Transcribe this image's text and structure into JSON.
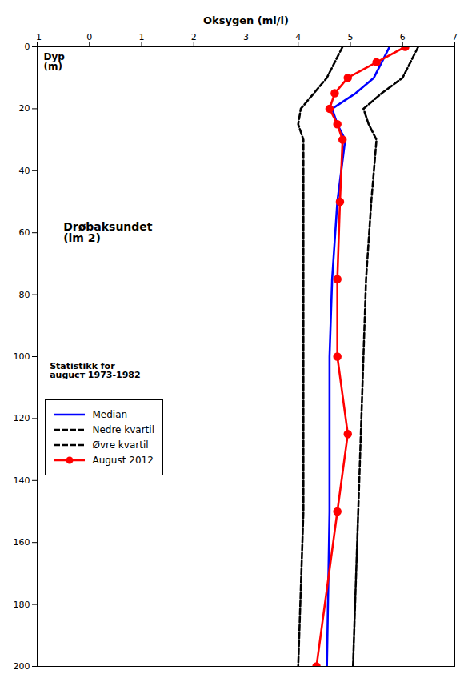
{
  "chart_data": {
    "type": "line",
    "xlabel": "Oksygen (ml/l)",
    "ylabel": "Dyp\n(m)",
    "annotations": [
      "Drøbaksundet\n(lm 2)",
      "Statistikk for\nauguст 1973-1982"
    ],
    "xlim": [
      -1,
      7
    ],
    "ylim": [
      0,
      200
    ],
    "xticks": [
      -1,
      0,
      1,
      2,
      3,
      4,
      5,
      6,
      7
    ],
    "yticks": [
      0,
      20,
      40,
      60,
      80,
      100,
      120,
      140,
      160,
      180,
      200
    ],
    "grid": false,
    "legend": "lower left",
    "series": [
      {
        "name": "Median",
        "color": "#0000ff",
        "line_style": "solid",
        "x": [
          5.75,
          5.6,
          5.45,
          5.1,
          4.65,
          4.75,
          4.9,
          4.75,
          4.65,
          4.6,
          4.6,
          4.6,
          4.55
        ],
        "values": [
          0,
          5,
          10,
          15,
          20,
          25,
          30,
          50,
          75,
          100,
          125,
          150,
          200
        ]
      },
      {
        "name": "Nedre kvartil",
        "color": "#000000",
        "line_style": "dashed",
        "x": [
          4.85,
          4.7,
          4.55,
          4.3,
          4.05,
          4.0,
          4.1,
          4.1,
          4.1,
          4.1,
          4.1,
          4.1,
          4.05,
          4.0
        ],
        "values": [
          0,
          5,
          10,
          15,
          20,
          25,
          30,
          50,
          75,
          100,
          125,
          150,
          175,
          200
        ]
      },
      {
        "name": "Øvre kvartil",
        "color": "#000000",
        "line_style": "dashed",
        "x": [
          6.3,
          6.15,
          6.0,
          5.6,
          5.25,
          5.35,
          5.5,
          5.4,
          5.3,
          5.25,
          5.2,
          5.15,
          5.1,
          5.05
        ],
        "values": [
          0,
          5,
          10,
          15,
          20,
          25,
          30,
          50,
          75,
          100,
          125,
          150,
          175,
          200
        ]
      },
      {
        "name": "August 2012",
        "color": "#ff0000",
        "line_style": "solid",
        "marker": "circle",
        "x": [
          6.05,
          5.5,
          4.95,
          4.7,
          4.6,
          4.75,
          4.85,
          4.8,
          4.75,
          4.75,
          4.95,
          4.75,
          4.35
        ],
        "values": [
          0,
          5,
          10,
          15,
          20,
          25,
          30,
          50,
          75,
          100,
          125,
          150,
          200
        ]
      }
    ]
  }
}
